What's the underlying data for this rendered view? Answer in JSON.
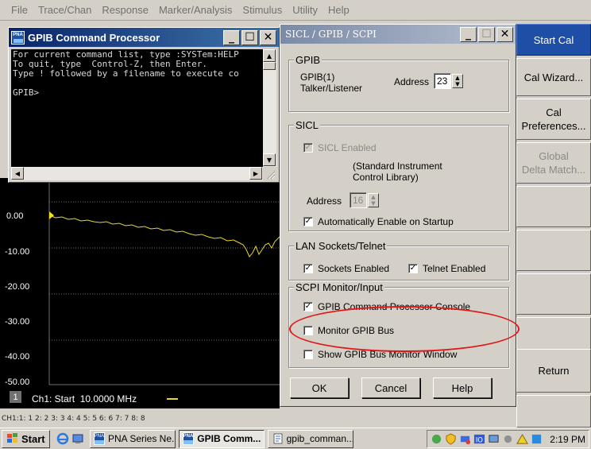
{
  "menu": [
    "File",
    "Trace/Chan",
    "Response",
    "Marker/Analysis",
    "Stimulus",
    "Utility",
    "Help"
  ],
  "gpib_console": {
    "title": "GPIB Command Processor",
    "lines": [
      "For current command list, type :SYSTem:HELP",
      "To quit, type  Control-Z, then Enter.",
      "Type ! followed by a filename to execute co",
      "",
      "GPIB>"
    ]
  },
  "chart": {
    "y_tick_labels": [
      "0.00",
      "-10.00",
      "-20.00",
      "-30.00",
      "-40.00",
      "-50.00"
    ],
    "channel_number": "1",
    "status_text": "Ch1: Start  10.0000 MHz",
    "trace_color": "#e8d820",
    "marker_color": "#f0e020"
  },
  "channel_strip": "CH1:1: 1  2: 2  3: 3  4: 4  5: 5  6: 6  7: 7  8: 8",
  "softkeys": {
    "start_cal": "Start Cal",
    "cal_wizard": "Cal Wizard...",
    "cal_preferences_1": "Cal",
    "cal_preferences_2": "Preferences...",
    "global_delta_1": "Global",
    "global_delta_2": "Delta Match...",
    "return": "Return"
  },
  "sicl_dialog": {
    "title": "SICL / GPIB / SCPI",
    "gpib_group": "GPIB",
    "gpib_name": "GPIB(1)",
    "gpib_role": "Talker/Listener",
    "address_label": "Address",
    "gpib_address": "23",
    "sicl_group": "SICL",
    "sicl_enabled": "SICL Enabled",
    "sicl_desc_1": "(Standard Instrument",
    "sicl_desc_2": "Control Library)",
    "sicl_address": "16",
    "auto_enable": "Automatically Enable on Startup",
    "lan_group": "LAN Sockets/Telnet",
    "sockets_enabled": "Sockets Enabled",
    "telnet_enabled": "Telnet Enabled",
    "scpi_group": "SCPI Monitor/Input",
    "gpib_console_opt": "GPIB Command Processor Console",
    "monitor_bus": "Monitor GPIB Bus",
    "show_monitor": "Show GPIB Bus Monitor Window",
    "ok": "OK",
    "cancel": "Cancel",
    "help": "Help"
  },
  "taskbar": {
    "start": "Start",
    "tasks": [
      "PNA Series Ne...",
      "GPIB Comm...",
      "gpib_comman..."
    ],
    "clock": "2:19 PM"
  },
  "colors": {
    "highlight_ellipse": "#e01818",
    "active_softkey": "#1f4ea6"
  }
}
